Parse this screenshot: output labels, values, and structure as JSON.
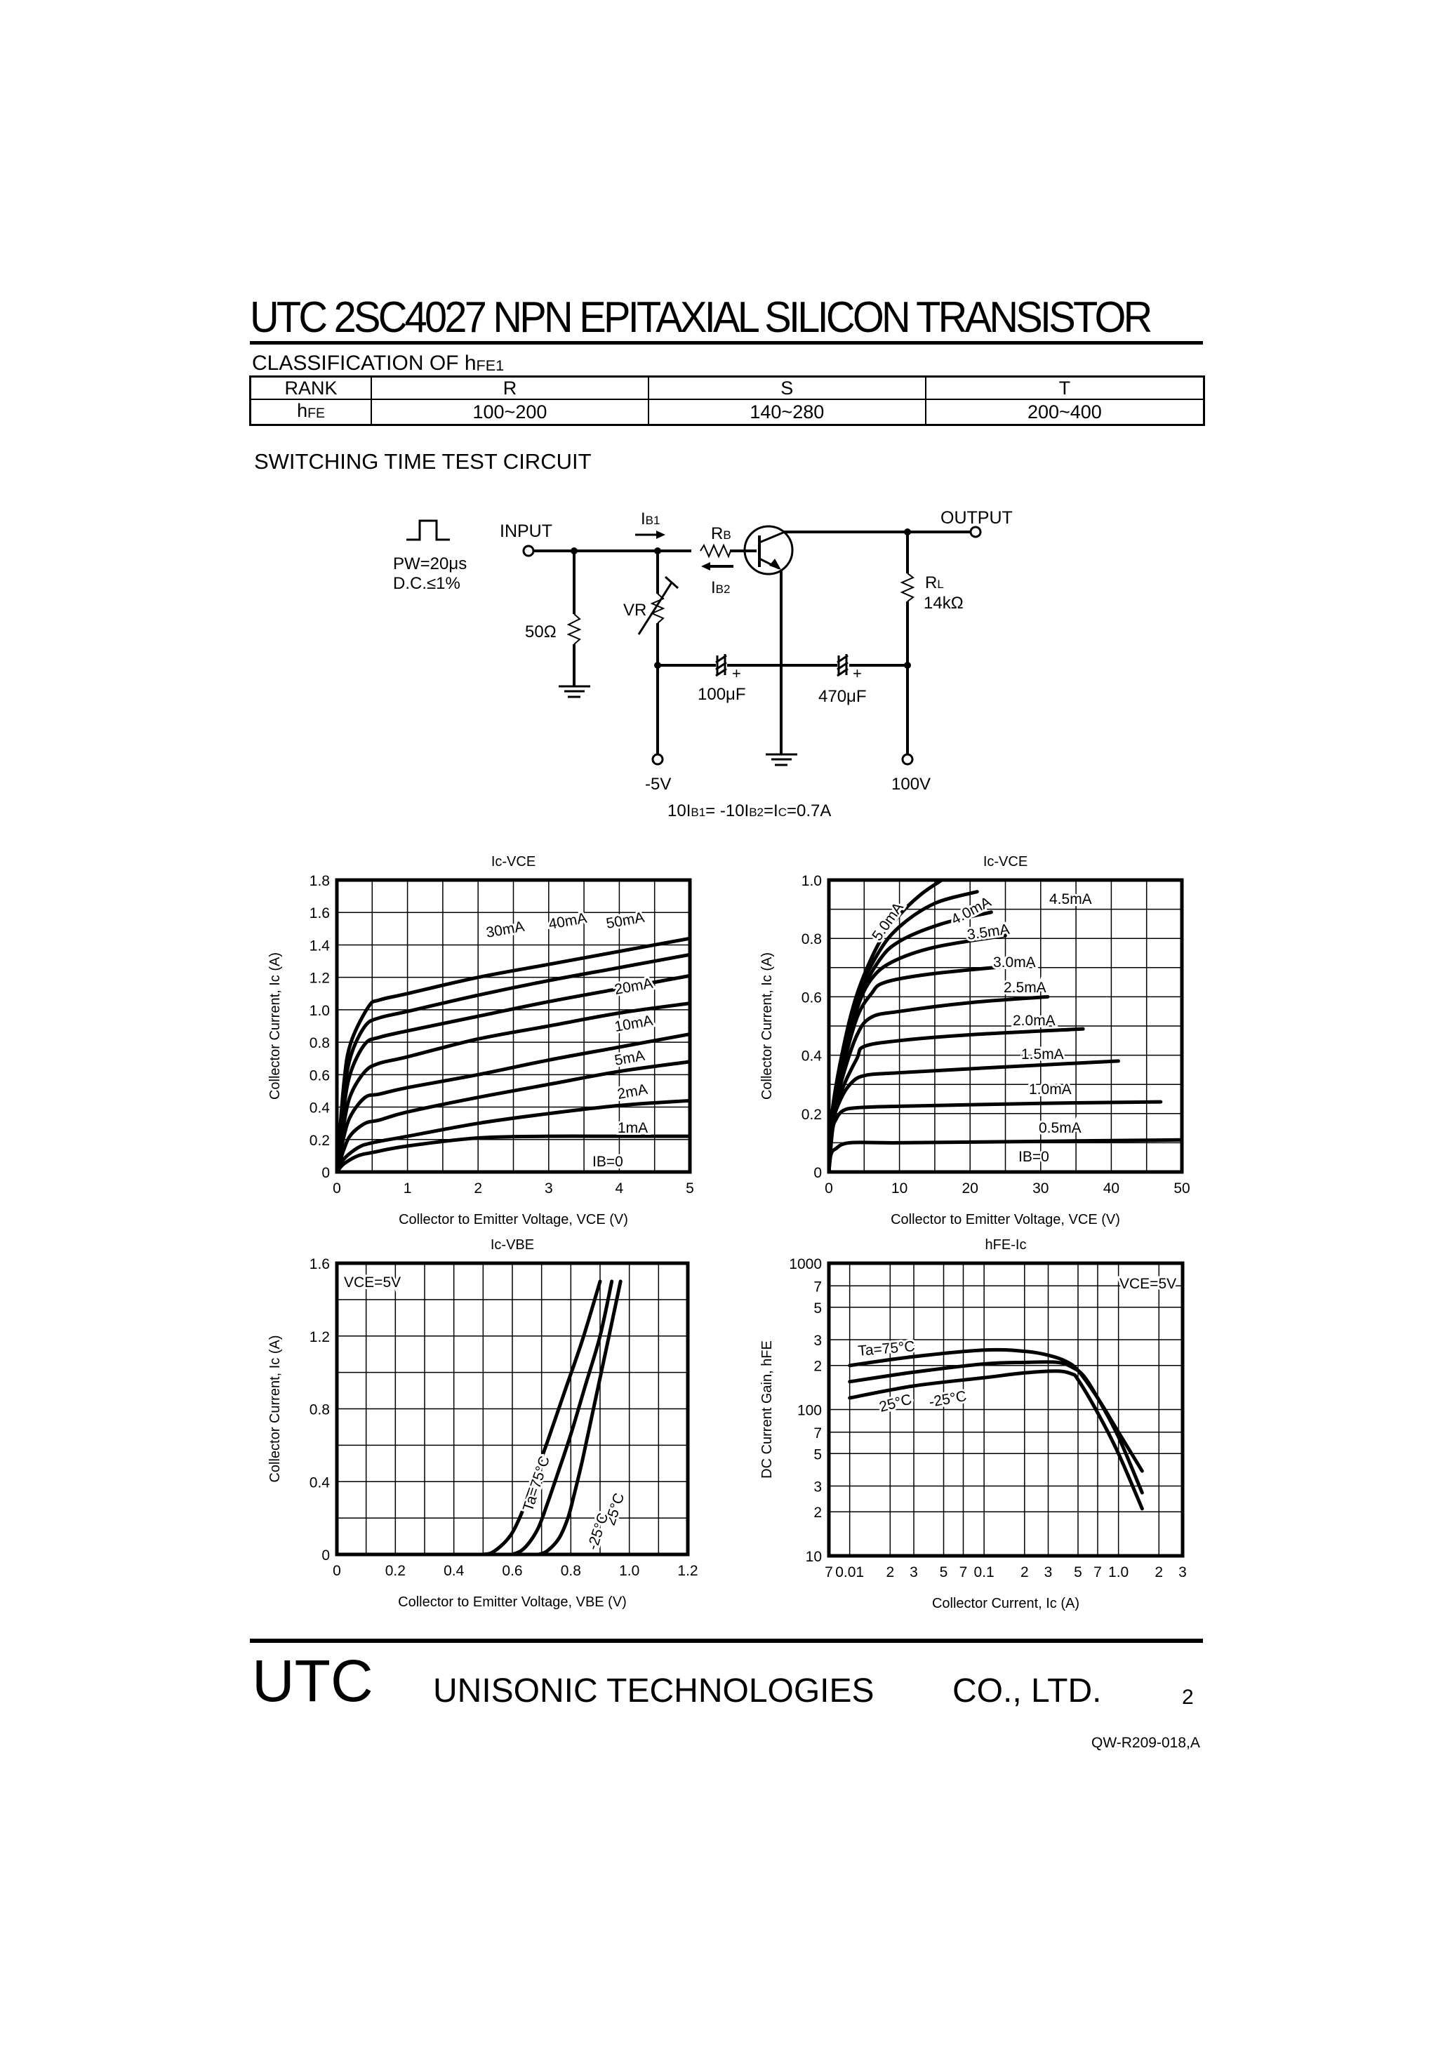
{
  "header": {
    "title": "UTC 2SC4027   NPN EPITAXIAL SILICON TRANSISTOR"
  },
  "classification": {
    "heading_main": "CLASSIFICATION OF h",
    "heading_sub": "FE1",
    "columns": [
      "RANK",
      "R",
      "S",
      "T"
    ],
    "row_label_main": "h",
    "row_label_sub": "FE",
    "values": [
      "100~200",
      "140~280",
      "200~400"
    ]
  },
  "circuit": {
    "heading": "SWITCHING TIME TEST CIRCUIT",
    "pulse_width": "PW=20μs",
    "duty_cycle": "D.C.≤1%",
    "input_label": "INPUT",
    "output_label": "OUTPUT",
    "ib1_label": "I",
    "ib1_sub": "B1",
    "ib2_label": "I",
    "ib2_sub": "B2",
    "rb_label": "R",
    "rb_sub": "B",
    "rl_label": "R",
    "rl_sub": "L",
    "rl_value": "14kΩ",
    "vr_label": "VR",
    "r50_label": "50Ω",
    "cap1_label": "100μF",
    "cap2_label": "470μF",
    "neg_supply": "-5V",
    "pos_supply": "100V",
    "plus": "+",
    "equation": "10I B1= -10I B2=I C=0.7A",
    "eq_parts": [
      "10I",
      "B1",
      "= -10I",
      "B2",
      "=I",
      "C",
      "=0.7A"
    ]
  },
  "chart_data": [
    {
      "id": "ic-vce-low",
      "type": "line",
      "title": "Ic-VCE",
      "title_main": "I",
      "title_sub": "C-V",
      "title_sub2": "CE",
      "xlabel": "Collector to Emitter Voltage,  VCE (V)",
      "ylabel": "Collector Current, Ic (A)",
      "xlim": [
        0,
        5
      ],
      "ylim": [
        0,
        1.8
      ],
      "xticks": [
        "0",
        "1",
        "2",
        "3",
        "4",
        "5"
      ],
      "yticks": [
        "0",
        "0.2",
        "0.4",
        "0.6",
        "0.8",
        "1.0",
        "1.2",
        "1.4",
        "1.6",
        "1.8"
      ],
      "grid": {
        "x_step": 0.5,
        "y_step": 0.2
      },
      "legend_position": "inline-labels",
      "series": [
        {
          "name": "IB=0",
          "x": [
            0,
            0.1,
            0.3,
            0.5,
            1,
            2,
            3,
            4,
            5
          ],
          "y": [
            0,
            0.05,
            0.1,
            0.12,
            0.16,
            0.21,
            0.22,
            0.22,
            0.22
          ]
        },
        {
          "name": "1mA",
          "x": [
            0,
            0.1,
            0.3,
            0.5,
            1,
            2,
            3,
            4,
            5
          ],
          "y": [
            0,
            0.08,
            0.15,
            0.18,
            0.22,
            0.3,
            0.36,
            0.41,
            0.44
          ]
        },
        {
          "name": "2mA",
          "x": [
            0,
            0.1,
            0.2,
            0.4,
            0.6,
            1,
            2,
            3,
            4,
            5
          ],
          "y": [
            0,
            0.14,
            0.23,
            0.3,
            0.32,
            0.37,
            0.46,
            0.54,
            0.62,
            0.68
          ]
        },
        {
          "name": "5mA",
          "x": [
            0,
            0.1,
            0.2,
            0.4,
            0.6,
            1,
            2,
            3,
            4,
            5
          ],
          "y": [
            0,
            0.22,
            0.35,
            0.46,
            0.48,
            0.52,
            0.6,
            0.69,
            0.77,
            0.85
          ]
        },
        {
          "name": "10mA",
          "x": [
            0,
            0.1,
            0.2,
            0.4,
            0.6,
            1,
            2,
            3,
            4,
            5
          ],
          "y": [
            0,
            0.3,
            0.48,
            0.62,
            0.67,
            0.71,
            0.82,
            0.9,
            0.98,
            1.04
          ]
        },
        {
          "name": "20mA",
          "x": [
            0,
            0.1,
            0.2,
            0.4,
            0.6,
            1,
            2,
            3,
            4,
            5
          ],
          "y": [
            0,
            0.4,
            0.62,
            0.79,
            0.83,
            0.87,
            0.96,
            1.05,
            1.13,
            1.21
          ]
        },
        {
          "name": "30mA",
          "x": [
            0,
            0.1,
            0.2,
            0.4,
            0.6,
            1,
            2,
            3,
            4,
            5
          ],
          "y": [
            0,
            0.48,
            0.72,
            0.9,
            0.95,
            0.99,
            1.09,
            1.18,
            1.26,
            1.34
          ]
        },
        {
          "name": "40mA/50mA",
          "x": [
            0,
            0.1,
            0.2,
            0.45,
            0.6,
            1,
            2,
            3,
            4,
            5
          ],
          "y": [
            0,
            0.55,
            0.8,
            1.02,
            1.06,
            1.1,
            1.2,
            1.28,
            1.36,
            1.44
          ]
        }
      ],
      "annotations": [
        "30mA",
        "40mA",
        "50mA",
        "20mA",
        "10mA",
        "5mA",
        "2mA",
        "1mA",
        "IB=0"
      ]
    },
    {
      "id": "ic-vce-high",
      "type": "line",
      "title": "Ic-VCE",
      "title_main": "I",
      "title_sub": "C-V",
      "title_sub2": "CE",
      "xlabel": "Collector to Emitter Voltage,  VCE (V)",
      "ylabel": "Collector Current, Ic (A)",
      "xlim": [
        0,
        50
      ],
      "ylim": [
        0,
        1.0
      ],
      "xticks": [
        "0",
        "10",
        "20",
        "30",
        "40",
        "50"
      ],
      "yticks": [
        "0",
        "0.2",
        "0.4",
        "0.6",
        "0.8",
        "1.0"
      ],
      "grid": {
        "x_step": 5,
        "y_step": 0.1
      },
      "legend_position": "inline-labels",
      "series": [
        {
          "name": "IB=0",
          "x": [
            0,
            0.3,
            1,
            3,
            10,
            30,
            50
          ],
          "y": [
            0,
            0.06,
            0.08,
            0.1,
            0.1,
            0.105,
            0.11
          ]
        },
        {
          "name": "0.5mA",
          "x": [
            0,
            0.5,
            1,
            2,
            4,
            10,
            30,
            47
          ],
          "y": [
            0,
            0.14,
            0.18,
            0.21,
            0.22,
            0.225,
            0.235,
            0.24
          ]
        },
        {
          "name": "1.0mA",
          "x": [
            0,
            0.5,
            1.5,
            3,
            5,
            10,
            25,
            41
          ],
          "y": [
            0,
            0.16,
            0.24,
            0.3,
            0.33,
            0.34,
            0.36,
            0.38
          ]
        },
        {
          "name": "1.5mA",
          "x": [
            0,
            0.5,
            2,
            4,
            5,
            10,
            20,
            36
          ],
          "y": [
            0,
            0.17,
            0.29,
            0.39,
            0.43,
            0.45,
            0.47,
            0.49
          ]
        },
        {
          "name": "2.0mA",
          "x": [
            0,
            0.5,
            2,
            4,
            6,
            10,
            20,
            31
          ],
          "y": [
            0,
            0.18,
            0.33,
            0.47,
            0.53,
            0.55,
            0.58,
            0.6
          ]
        },
        {
          "name": "2.5mA",
          "x": [
            0,
            0.5,
            2,
            4,
            6,
            8,
            15,
            28
          ],
          "y": [
            0,
            0.19,
            0.36,
            0.53,
            0.61,
            0.65,
            0.68,
            0.71
          ]
        },
        {
          "name": "3.0mA",
          "x": [
            0,
            0.5,
            2,
            4,
            6,
            9,
            15,
            25
          ],
          "y": [
            0,
            0.2,
            0.38,
            0.56,
            0.66,
            0.72,
            0.77,
            0.81
          ]
        },
        {
          "name": "3.5mA",
          "x": [
            0,
            0.5,
            2,
            4,
            7,
            10,
            16,
            23
          ],
          "y": [
            0,
            0.2,
            0.4,
            0.58,
            0.72,
            0.79,
            0.85,
            0.89
          ]
        },
        {
          "name": "4.0mA",
          "x": [
            0,
            0.5,
            2,
            4,
            7,
            10,
            15,
            21
          ],
          "y": [
            0,
            0.21,
            0.41,
            0.6,
            0.75,
            0.84,
            0.92,
            0.96
          ]
        },
        {
          "name": "5.0mA",
          "x": [
            0,
            0.5,
            2,
            4,
            7,
            10,
            13,
            16
          ],
          "y": [
            0,
            0.21,
            0.42,
            0.61,
            0.78,
            0.88,
            0.95,
            1.0
          ]
        }
      ],
      "annotations": [
        "5.0mA",
        "4.0mA",
        "4.5mA",
        "3.5mA",
        "3.0mA",
        "2.5mA",
        "2.0mA",
        "1.5mA",
        "1.0mA",
        "0.5mA",
        "IB=0"
      ]
    },
    {
      "id": "ic-vbe",
      "type": "line",
      "title": "Ic-VBE",
      "title_main": "I",
      "title_sub": "C-V",
      "title_sub2": "BE",
      "xlabel": "Collector  to  Emitter Voltage, VBE (V)",
      "ylabel": "Collector Current, Ic (A)",
      "xlim": [
        0,
        1.2
      ],
      "ylim": [
        0,
        1.6
      ],
      "xticks": [
        "0",
        "0.2",
        "0.4",
        "0.6",
        "0.8",
        "1.0",
        "1.2"
      ],
      "yticks": [
        "0",
        "0.4",
        "0.8",
        "1.2",
        "1.6"
      ],
      "grid": {
        "x_step": 0.1,
        "y_step": 0.2
      },
      "condition": "VCE=5V",
      "series": [
        {
          "name": "Ta=75°C",
          "x": [
            0.5,
            0.53,
            0.57,
            0.6,
            0.63,
            0.66,
            0.72,
            0.78,
            0.84,
            0.9
          ],
          "y": [
            0,
            0.01,
            0.06,
            0.12,
            0.22,
            0.35,
            0.62,
            0.9,
            1.18,
            1.5
          ]
        },
        {
          "name": "25°C",
          "x": [
            0.6,
            0.63,
            0.66,
            0.69,
            0.72,
            0.75,
            0.8,
            0.85,
            0.9,
            0.94
          ],
          "y": [
            0,
            0.02,
            0.07,
            0.15,
            0.28,
            0.42,
            0.66,
            0.93,
            1.2,
            1.5
          ]
        },
        {
          "name": "-25°C",
          "x": [
            0.69,
            0.72,
            0.76,
            0.79,
            0.81,
            0.84,
            0.88,
            0.92,
            0.97
          ],
          "y": [
            0,
            0.02,
            0.09,
            0.2,
            0.32,
            0.52,
            0.82,
            1.12,
            1.5
          ]
        }
      ],
      "annotations": [
        "VCE=5V",
        "Ta=75°C",
        "25°C",
        "-25°C"
      ]
    },
    {
      "id": "hfe-ic",
      "type": "line",
      "title": "hFE-Ic",
      "title_main": "h",
      "title_sub": "FE",
      "title_rest": "-Ic",
      "xlabel": "Collector Current, Ic (A)",
      "ylabel": "DC Current Gain, hFE",
      "xscale": "log",
      "yscale": "log",
      "xlim": [
        0.007,
        3
      ],
      "ylim": [
        10,
        1000
      ],
      "xticks": [
        "7",
        "0.01",
        "2",
        "3",
        "5",
        "7",
        "0.1",
        "2",
        "3",
        "5",
        "7",
        "1.0",
        "2",
        "3"
      ],
      "xtick_values": [
        0.007,
        0.01,
        0.02,
        0.03,
        0.05,
        0.07,
        0.1,
        0.2,
        0.3,
        0.5,
        0.7,
        1.0,
        2,
        3
      ],
      "yticks": [
        "10",
        "2",
        "3",
        "5",
        "7",
        "100",
        "2",
        "3",
        "5",
        "7",
        "1000"
      ],
      "ytick_values": [
        10,
        20,
        30,
        50,
        70,
        100,
        200,
        300,
        500,
        700,
        1000
      ],
      "condition": "VCE=5V",
      "series": [
        {
          "name": "Ta=75°C",
          "x": [
            0.01,
            0.03,
            0.1,
            0.2,
            0.3,
            0.4,
            0.5,
            0.7,
            1.0,
            1.5
          ],
          "y": [
            200,
            230,
            255,
            250,
            235,
            215,
            185,
            120,
            70,
            38
          ]
        },
        {
          "name": "25°C",
          "x": [
            0.01,
            0.03,
            0.1,
            0.2,
            0.35,
            0.45,
            0.55,
            0.7,
            1.0,
            1.5
          ],
          "y": [
            155,
            180,
            205,
            210,
            210,
            195,
            170,
            120,
            65,
            27
          ]
        },
        {
          "name": "-25°C",
          "x": [
            0.01,
            0.03,
            0.1,
            0.2,
            0.35,
            0.45,
            0.5,
            0.7,
            1.0,
            1.5
          ],
          "y": [
            120,
            145,
            165,
            178,
            183,
            175,
            160,
            95,
            50,
            21
          ]
        }
      ],
      "annotations": [
        "VCE=5V",
        "Ta=75°C",
        "25°C",
        "-25°C"
      ]
    }
  ],
  "footer": {
    "logo": "UTC",
    "company": "UNISONIC TECHNOLOGIES",
    "company_suffix": "CO., LTD.",
    "page": "2",
    "doc_number": "QW-R209-018,A"
  }
}
